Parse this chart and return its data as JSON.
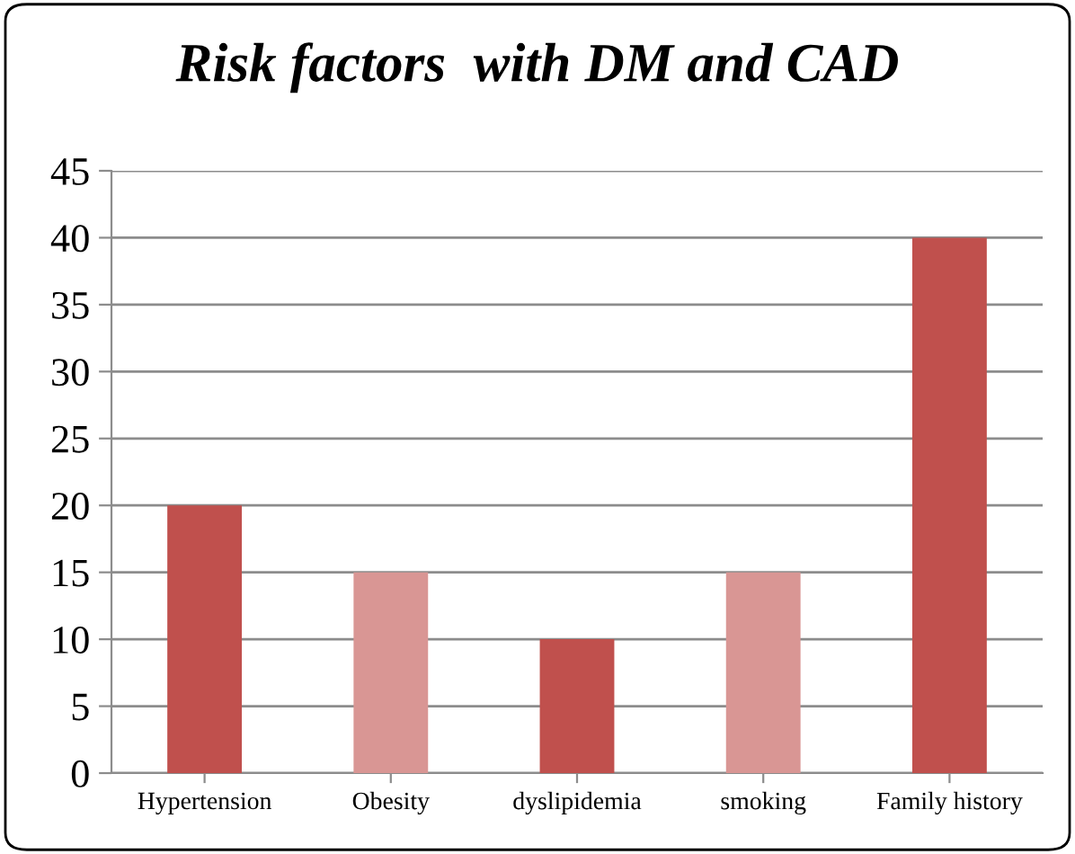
{
  "chart_data": {
    "type": "bar",
    "title": "Risk factors  with DM and CAD",
    "categories": [
      "Hypertension",
      "Obesity",
      "dyslipidemia",
      "smoking",
      "Family history"
    ],
    "values": [
      20,
      15,
      10,
      15,
      40
    ],
    "colors": [
      "#c0504d",
      "#d99694",
      "#c0504d",
      "#d99694",
      "#c0504d"
    ],
    "ylim": [
      0,
      45
    ],
    "yticks": [
      0,
      5,
      10,
      15,
      20,
      25,
      30,
      35,
      40,
      45
    ],
    "grid": "y"
  }
}
